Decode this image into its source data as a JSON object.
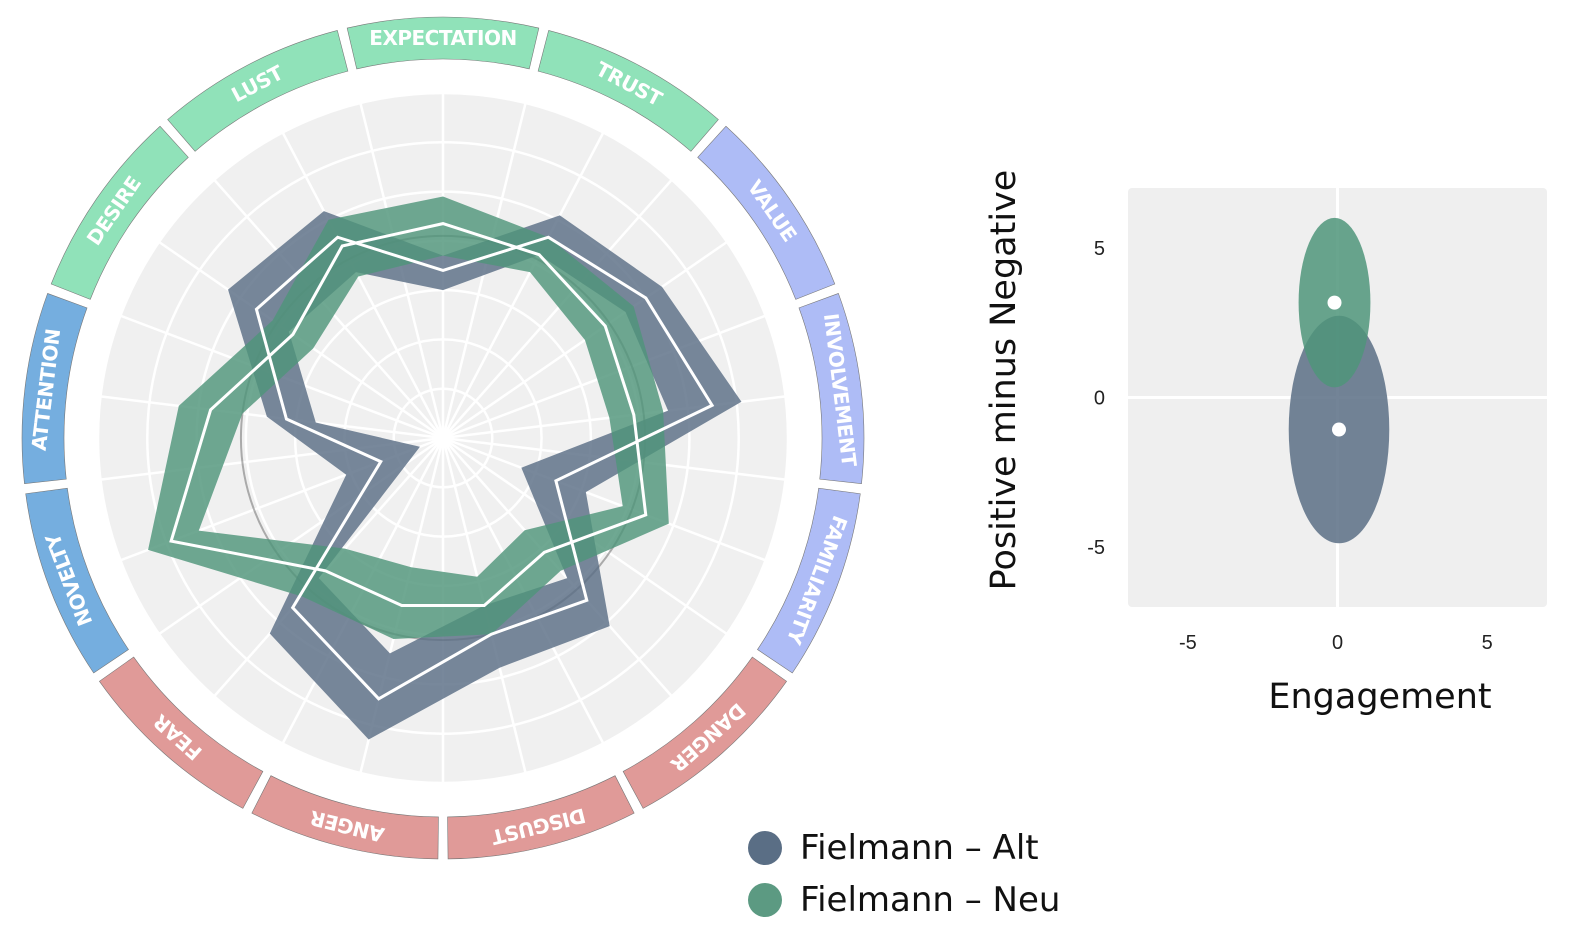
{
  "chart_data": [
    {
      "type": "radar",
      "categories": [
        "EXPECTATION",
        "TRUST",
        "VALUE",
        "INVOLVEMENT",
        "FAMILIARITY",
        "DANGER",
        "DISGUST",
        "ANGER",
        "FEAR",
        "NOVELTY",
        "ATTENTION",
        "DESIRE",
        "LUST"
      ],
      "category_colors": [
        "#90e2b9",
        "#90e2b9",
        "#aebcf6",
        "#aebcf6",
        "#aebcf6",
        "#e09a98",
        "#e09a98",
        "#e09a98",
        "#e09a98",
        "#75aedf",
        "#75aedf",
        "#90e2b9",
        "#90e2b9"
      ],
      "rlim": [
        0,
        7
      ],
      "grid": true,
      "reference_circle": 4.1,
      "series": [
        {
          "name": "Fielmann – Alt",
          "color": "#5a6e85",
          "values": [
            3.4,
            4.6,
            5.0,
            5.5,
            2.45,
            4.4,
            4.1,
            5.45,
            4.6,
            1.35,
            3.2,
            4.6,
            4.6
          ],
          "lower": [
            3.0,
            4.2,
            4.5,
            4.6,
            1.7,
            3.8,
            3.5,
            4.5,
            3.8,
            0.5,
            2.6,
            3.8,
            3.8
          ],
          "upper": [
            3.7,
            5.1,
            5.4,
            6.1,
            3.1,
            5.1,
            4.8,
            6.3,
            5.3,
            2.1,
            3.6,
            5.3,
            5.2
          ]
        },
        {
          "name": "Fielmann – Neu",
          "color": "#4f957a",
          "values": [
            4.35,
            4.2,
            4.0,
            3.9,
            4.4,
            3.1,
            3.5,
            3.5,
            3.6,
            5.9,
            4.75,
            3.7,
            4.4
          ],
          "lower": [
            3.7,
            3.8,
            3.5,
            3.4,
            3.9,
            2.5,
            2.9,
            2.7,
            3.0,
            5.3,
            4.1,
            3.2,
            3.7
          ],
          "upper": [
            4.9,
            4.6,
            4.7,
            4.5,
            4.9,
            3.6,
            4.1,
            4.2,
            4.3,
            6.4,
            5.4,
            4.2,
            5.0
          ]
        }
      ],
      "legend": "bottom-right"
    },
    {
      "type": "scatter",
      "xlabel": "Engagement",
      "ylabel": "Positive minus Negative",
      "xlim": [
        -7,
        7
      ],
      "ylim": [
        -7,
        7
      ],
      "xticks": [
        -5,
        0,
        5
      ],
      "yticks": [
        -5,
        0,
        5
      ],
      "grid": false,
      "series": [
        {
          "name": "Fielmann – Alt",
          "color": "#5a6e85",
          "x": 0.05,
          "y": -1.07,
          "ellipse_rx": 1.68,
          "ellipse_ry": 3.8
        },
        {
          "name": "Fielmann – Neu",
          "color": "#4f957a",
          "x": -0.1,
          "y": 3.17,
          "ellipse_rx": 1.2,
          "ellipse_ry": 2.83
        }
      ]
    }
  ],
  "legend": {
    "items": [
      {
        "label": "Fielmann – Alt",
        "color": "#5a6e85"
      },
      {
        "label": "Fielmann – Neu",
        "color": "#5c9a82"
      }
    ]
  }
}
